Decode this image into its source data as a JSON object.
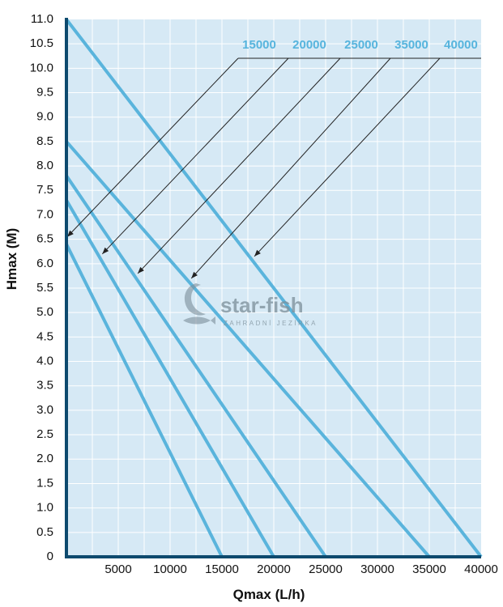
{
  "chart_data": {
    "type": "line",
    "xlabel": "Qmax (L/h)",
    "ylabel": "Hmax (M)",
    "xlim": [
      0,
      40000
    ],
    "ylim": [
      0,
      11.0
    ],
    "x_ticks": [
      "5000",
      "10000",
      "15000",
      "20000",
      "25000",
      "30000",
      "35000",
      "40000"
    ],
    "y_ticks": [
      "0",
      "0.5",
      "1.0",
      "1.5",
      "2.0",
      "2.5",
      "3.0",
      "3.5",
      "4.0",
      "4.5",
      "5.0",
      "5.5",
      "6.0",
      "6.5",
      "7.0",
      "7.5",
      "8.0",
      "8.5",
      "9.0",
      "9.5",
      "10.0",
      "10.5",
      "11.0"
    ],
    "grid": true,
    "series": [
      {
        "name": "15000",
        "x": [
          0,
          15000
        ],
        "y": [
          6.4,
          0
        ]
      },
      {
        "name": "20000",
        "x": [
          0,
          20000
        ],
        "y": [
          7.3,
          0
        ]
      },
      {
        "name": "25000",
        "x": [
          0,
          25000
        ],
        "y": [
          7.8,
          0
        ]
      },
      {
        "name": "35000",
        "x": [
          0,
          35000
        ],
        "y": [
          8.5,
          0
        ]
      },
      {
        "name": "40000",
        "x": [
          0,
          40000
        ],
        "y": [
          11.0,
          0
        ]
      }
    ],
    "legend_placement": "top-right",
    "colors": {
      "line": "#5ab4dc",
      "plot_bg": "#d6e9f5",
      "grid": "#ffffff",
      "axis": "#0d4a6e"
    }
  },
  "watermark": {
    "title": "star-fish",
    "subtitle": "ZAHRADNÍ JEZÍRKA"
  }
}
